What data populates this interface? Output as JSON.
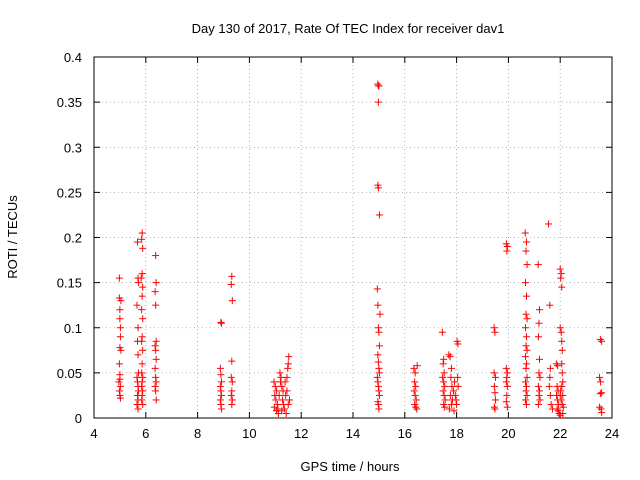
{
  "chart_data": {
    "type": "scatter",
    "title": "Day 130 of 2017, Rate Of TEC Index for receiver dav1",
    "xlabel": "GPS time / hours",
    "ylabel": "ROTI / TECUs",
    "xlim": [
      4,
      24
    ],
    "ylim": [
      0,
      0.4
    ],
    "xticks": [
      4,
      6,
      8,
      10,
      12,
      14,
      16,
      18,
      20,
      22,
      24
    ],
    "yticks": [
      0,
      0.05,
      0.1,
      0.15,
      0.2,
      0.25,
      0.3,
      0.35,
      0.4
    ],
    "ytick_labels": [
      "0",
      "0.05",
      "0.1",
      "0.15",
      "0.2",
      "0.25",
      "0.3",
      "0.35",
      "0.4"
    ],
    "grid": true,
    "marker": "+",
    "color": "#ff0000",
    "series": [
      {
        "name": "dav1",
        "points": [
          [
            4.98,
            0.155
          ],
          [
            4.98,
            0.133
          ],
          [
            5.0,
            0.12
          ],
          [
            5.0,
            0.11
          ],
          [
            5.02,
            0.1
          ],
          [
            5.02,
            0.09
          ],
          [
            5.0,
            0.078
          ],
          [
            5.04,
            0.075
          ],
          [
            4.98,
            0.06
          ],
          [
            5.0,
            0.048
          ],
          [
            5.0,
            0.043
          ],
          [
            4.96,
            0.04
          ],
          [
            5.02,
            0.035
          ],
          [
            4.98,
            0.03
          ],
          [
            5.0,
            0.025
          ],
          [
            5.02,
            0.022
          ],
          [
            5.04,
            0.13
          ],
          [
            5.68,
            0.195
          ],
          [
            5.7,
            0.155
          ],
          [
            5.72,
            0.15
          ],
          [
            5.66,
            0.125
          ],
          [
            5.7,
            0.1
          ],
          [
            5.68,
            0.085
          ],
          [
            5.7,
            0.07
          ],
          [
            5.72,
            0.05
          ],
          [
            5.66,
            0.045
          ],
          [
            5.68,
            0.04
          ],
          [
            5.7,
            0.035
          ],
          [
            5.72,
            0.03
          ],
          [
            5.68,
            0.025
          ],
          [
            5.7,
            0.02
          ],
          [
            5.66,
            0.015
          ],
          [
            5.7,
            0.01
          ],
          [
            5.86,
            0.205
          ],
          [
            5.84,
            0.198
          ],
          [
            5.88,
            0.188
          ],
          [
            5.86,
            0.16
          ],
          [
            5.82,
            0.155
          ],
          [
            5.88,
            0.145
          ],
          [
            5.86,
            0.135
          ],
          [
            5.84,
            0.12
          ],
          [
            5.88,
            0.11
          ],
          [
            5.86,
            0.09
          ],
          [
            5.84,
            0.085
          ],
          [
            5.88,
            0.075
          ],
          [
            5.86,
            0.06
          ],
          [
            5.84,
            0.05
          ],
          [
            5.88,
            0.045
          ],
          [
            5.86,
            0.04
          ],
          [
            5.84,
            0.035
          ],
          [
            5.88,
            0.03
          ],
          [
            5.86,
            0.025
          ],
          [
            5.84,
            0.02
          ],
          [
            5.88,
            0.015
          ],
          [
            6.38,
            0.18
          ],
          [
            6.4,
            0.15
          ],
          [
            6.36,
            0.14
          ],
          [
            6.38,
            0.125
          ],
          [
            6.4,
            0.085
          ],
          [
            6.36,
            0.08
          ],
          [
            6.38,
            0.075
          ],
          [
            6.4,
            0.065
          ],
          [
            6.36,
            0.055
          ],
          [
            6.38,
            0.045
          ],
          [
            6.4,
            0.04
          ],
          [
            6.36,
            0.035
          ],
          [
            6.38,
            0.03
          ],
          [
            6.4,
            0.02
          ],
          [
            8.9,
            0.106
          ],
          [
            8.92,
            0.105
          ],
          [
            8.88,
            0.055
          ],
          [
            8.9,
            0.048
          ],
          [
            8.92,
            0.04
          ],
          [
            8.88,
            0.035
          ],
          [
            8.9,
            0.03
          ],
          [
            8.92,
            0.025
          ],
          [
            8.88,
            0.02
          ],
          [
            8.9,
            0.015
          ],
          [
            8.92,
            0.01
          ],
          [
            9.32,
            0.157
          ],
          [
            9.3,
            0.148
          ],
          [
            9.34,
            0.13
          ],
          [
            9.32,
            0.063
          ],
          [
            9.3,
            0.045
          ],
          [
            9.34,
            0.04
          ],
          [
            9.32,
            0.03
          ],
          [
            9.3,
            0.025
          ],
          [
            9.34,
            0.02
          ],
          [
            9.32,
            0.015
          ],
          [
            10.95,
            0.04
          ],
          [
            11.0,
            0.035
          ],
          [
            11.05,
            0.03
          ],
          [
            10.98,
            0.025
          ],
          [
            11.02,
            0.02
          ],
          [
            11.08,
            0.015
          ],
          [
            10.96,
            0.012
          ],
          [
            11.04,
            0.008
          ],
          [
            11.1,
            0.01
          ],
          [
            11.15,
            0.025
          ],
          [
            11.2,
            0.04
          ],
          [
            11.18,
            0.05
          ],
          [
            11.22,
            0.045
          ],
          [
            11.25,
            0.035
          ],
          [
            11.3,
            0.03
          ],
          [
            11.28,
            0.02
          ],
          [
            11.32,
            0.015
          ],
          [
            11.35,
            0.01
          ],
          [
            11.4,
            0.025
          ],
          [
            11.45,
            0.03
          ],
          [
            11.5,
            0.06
          ],
          [
            11.52,
            0.068
          ],
          [
            11.48,
            0.055
          ],
          [
            11.45,
            0.045
          ],
          [
            11.55,
            0.02
          ],
          [
            11.5,
            0.015
          ],
          [
            11.42,
            0.005
          ],
          [
            11.12,
            0.005
          ],
          [
            11.25,
            0.008
          ],
          [
            11.38,
            0.04
          ],
          [
            14.96,
            0.37
          ],
          [
            14.98,
            0.368
          ],
          [
            15.0,
            0.368
          ],
          [
            14.98,
            0.35
          ],
          [
            14.96,
            0.258
          ],
          [
            14.98,
            0.255
          ],
          [
            15.02,
            0.225
          ],
          [
            14.94,
            0.143
          ],
          [
            14.96,
            0.125
          ],
          [
            14.98,
            0.1
          ],
          [
            15.0,
            0.095
          ],
          [
            15.02,
            0.08
          ],
          [
            14.96,
            0.07
          ],
          [
            14.98,
            0.062
          ],
          [
            15.0,
            0.055
          ],
          [
            15.02,
            0.05
          ],
          [
            14.94,
            0.045
          ],
          [
            14.96,
            0.04
          ],
          [
            14.98,
            0.035
          ],
          [
            15.0,
            0.03
          ],
          [
            15.02,
            0.025
          ],
          [
            14.96,
            0.018
          ],
          [
            14.98,
            0.015
          ],
          [
            15.0,
            0.01
          ],
          [
            15.04,
            0.115
          ],
          [
            16.35,
            0.055
          ],
          [
            16.4,
            0.05
          ],
          [
            16.38,
            0.04
          ],
          [
            16.42,
            0.035
          ],
          [
            16.36,
            0.03
          ],
          [
            16.4,
            0.025
          ],
          [
            16.44,
            0.02
          ],
          [
            16.38,
            0.015
          ],
          [
            16.42,
            0.012
          ],
          [
            16.46,
            0.01
          ],
          [
            16.48,
            0.058
          ],
          [
            17.45,
            0.095
          ],
          [
            17.5,
            0.065
          ],
          [
            17.48,
            0.06
          ],
          [
            17.52,
            0.05
          ],
          [
            17.46,
            0.045
          ],
          [
            17.5,
            0.04
          ],
          [
            17.54,
            0.035
          ],
          [
            17.48,
            0.03
          ],
          [
            17.52,
            0.025
          ],
          [
            17.56,
            0.02
          ],
          [
            17.5,
            0.015
          ],
          [
            17.54,
            0.012
          ],
          [
            17.7,
            0.07
          ],
          [
            17.75,
            0.068
          ],
          [
            17.8,
            0.055
          ],
          [
            17.78,
            0.045
          ],
          [
            17.82,
            0.035
          ],
          [
            17.76,
            0.025
          ],
          [
            17.84,
            0.02
          ],
          [
            17.8,
            0.015
          ],
          [
            17.88,
            0.03
          ],
          [
            17.92,
            0.04
          ],
          [
            17.95,
            0.025
          ],
          [
            17.98,
            0.02
          ],
          [
            18.02,
            0.085
          ],
          [
            18.05,
            0.082
          ],
          [
            18.04,
            0.045
          ],
          [
            18.06,
            0.035
          ],
          [
            18.0,
            0.015
          ],
          [
            17.72,
            0.01
          ],
          [
            17.9,
            0.008
          ],
          [
            19.45,
            0.1
          ],
          [
            19.48,
            0.095
          ],
          [
            19.45,
            0.05
          ],
          [
            19.5,
            0.045
          ],
          [
            19.46,
            0.035
          ],
          [
            19.48,
            0.028
          ],
          [
            19.5,
            0.02
          ],
          [
            19.46,
            0.012
          ],
          [
            19.48,
            0.01
          ],
          [
            19.92,
            0.193
          ],
          [
            19.96,
            0.19
          ],
          [
            19.94,
            0.185
          ],
          [
            19.92,
            0.055
          ],
          [
            19.96,
            0.05
          ],
          [
            19.94,
            0.045
          ],
          [
            19.92,
            0.04
          ],
          [
            19.96,
            0.035
          ],
          [
            19.94,
            0.025
          ],
          [
            19.92,
            0.018
          ],
          [
            19.96,
            0.012
          ],
          [
            20.65,
            0.205
          ],
          [
            20.7,
            0.195
          ],
          [
            20.68,
            0.185
          ],
          [
            20.72,
            0.17
          ],
          [
            20.66,
            0.15
          ],
          [
            20.7,
            0.135
          ],
          [
            20.68,
            0.115
          ],
          [
            20.72,
            0.11
          ],
          [
            20.66,
            0.1
          ],
          [
            20.7,
            0.09
          ],
          [
            20.68,
            0.08
          ],
          [
            20.72,
            0.075
          ],
          [
            20.66,
            0.068
          ],
          [
            20.7,
            0.06
          ],
          [
            20.68,
            0.055
          ],
          [
            20.72,
            0.045
          ],
          [
            20.66,
            0.04
          ],
          [
            20.7,
            0.035
          ],
          [
            20.68,
            0.03
          ],
          [
            20.72,
            0.025
          ],
          [
            20.66,
            0.02
          ],
          [
            20.7,
            0.015
          ],
          [
            21.15,
            0.17
          ],
          [
            21.2,
            0.12
          ],
          [
            21.18,
            0.105
          ],
          [
            21.16,
            0.09
          ],
          [
            21.2,
            0.065
          ],
          [
            21.18,
            0.05
          ],
          [
            21.22,
            0.045
          ],
          [
            21.16,
            0.035
          ],
          [
            21.2,
            0.03
          ],
          [
            21.18,
            0.025
          ],
          [
            21.22,
            0.02
          ],
          [
            21.16,
            0.015
          ],
          [
            21.55,
            0.215
          ],
          [
            21.6,
            0.125
          ],
          [
            21.62,
            0.055
          ],
          [
            21.6,
            0.045
          ],
          [
            21.58,
            0.035
          ],
          [
            21.62,
            0.025
          ],
          [
            21.65,
            0.015
          ],
          [
            21.7,
            0.01
          ],
          [
            21.85,
            0.06
          ],
          [
            21.9,
            0.058
          ],
          [
            21.88,
            0.035
          ],
          [
            21.92,
            0.03
          ],
          [
            21.86,
            0.025
          ],
          [
            21.9,
            0.02
          ],
          [
            21.94,
            0.015
          ],
          [
            21.88,
            0.01
          ],
          [
            21.92,
            0.008
          ],
          [
            21.96,
            0.005
          ],
          [
            22.0,
            0.003
          ],
          [
            22.02,
            0.03
          ],
          [
            22.0,
            0.025
          ],
          [
            22.04,
            0.02
          ],
          [
            22.0,
            0.165
          ],
          [
            22.04,
            0.16
          ],
          [
            22.02,
            0.155
          ],
          [
            22.06,
            0.145
          ],
          [
            22.0,
            0.1
          ],
          [
            22.04,
            0.095
          ],
          [
            22.06,
            0.085
          ],
          [
            22.08,
            0.075
          ],
          [
            22.06,
            0.06
          ],
          [
            22.08,
            0.05
          ],
          [
            22.1,
            0.04
          ],
          [
            22.06,
            0.035
          ],
          [
            22.1,
            0.025
          ],
          [
            22.08,
            0.015
          ],
          [
            22.1,
            0.005
          ],
          [
            22.12,
            0.012
          ],
          [
            23.55,
            0.087
          ],
          [
            23.6,
            0.085
          ],
          [
            23.52,
            0.045
          ],
          [
            23.56,
            0.04
          ],
          [
            23.6,
            0.028
          ],
          [
            23.55,
            0.027
          ],
          [
            23.52,
            0.012
          ],
          [
            23.58,
            0.01
          ],
          [
            23.6,
            0.006
          ]
        ]
      }
    ]
  }
}
